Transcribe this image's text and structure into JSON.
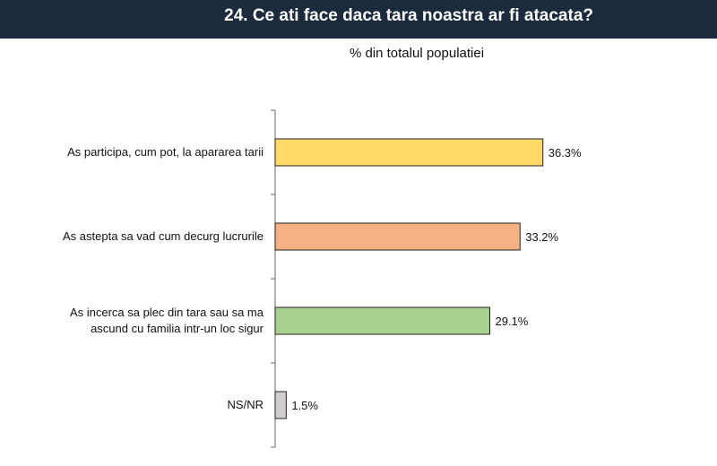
{
  "header": {
    "title": "24. Ce ati face daca tara noastra ar fi atacata?"
  },
  "chart_data": {
    "type": "bar",
    "orientation": "horizontal",
    "subtitle": "% din totalul populatiei",
    "categories": [
      [
        "As participa, cum pot, la apararea tarii"
      ],
      [
        "As astepta sa vad cum decurg lucrurile"
      ],
      [
        "As incerca sa plec din tara sau sa ma",
        "ascund cu familia intr-un loc sigur"
      ],
      [
        "NS/NR"
      ]
    ],
    "values": [
      36.3,
      33.2,
      29.1,
      1.5
    ],
    "value_labels": [
      "36.3%",
      "33.2%",
      "29.1%",
      "1.5%"
    ],
    "bar_colors": [
      "#ffd966",
      "#f4b183",
      "#a9d18e",
      "#d0cece"
    ],
    "xlim": [
      0,
      40
    ],
    "grid": false,
    "legend": "none"
  }
}
